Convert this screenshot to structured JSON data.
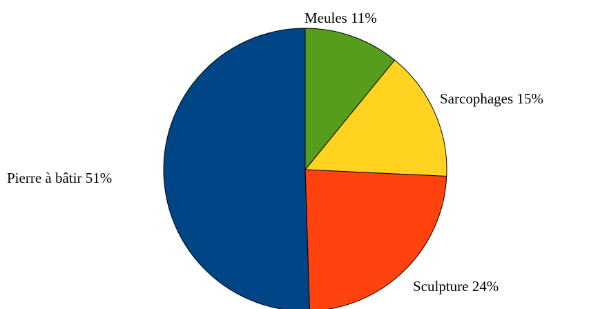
{
  "chart_data": {
    "type": "pie",
    "title": "",
    "start_angle_deg": 0,
    "direction": "clockwise",
    "legend": "none",
    "slices": [
      {
        "name": "Meules",
        "value": 11,
        "label": "Meules 11%",
        "color": "#579D1C"
      },
      {
        "name": "Sarcophages",
        "value": 15,
        "label": "Sarcophages 15%",
        "color": "#FFD320"
      },
      {
        "name": "Sculpture",
        "value": 24,
        "label": "Sculpture 24%",
        "color": "#FF420E"
      },
      {
        "name": "Pierre à bâtir",
        "value": 51,
        "label": "Pierre à bâtir 51%",
        "color": "#004586"
      }
    ]
  }
}
